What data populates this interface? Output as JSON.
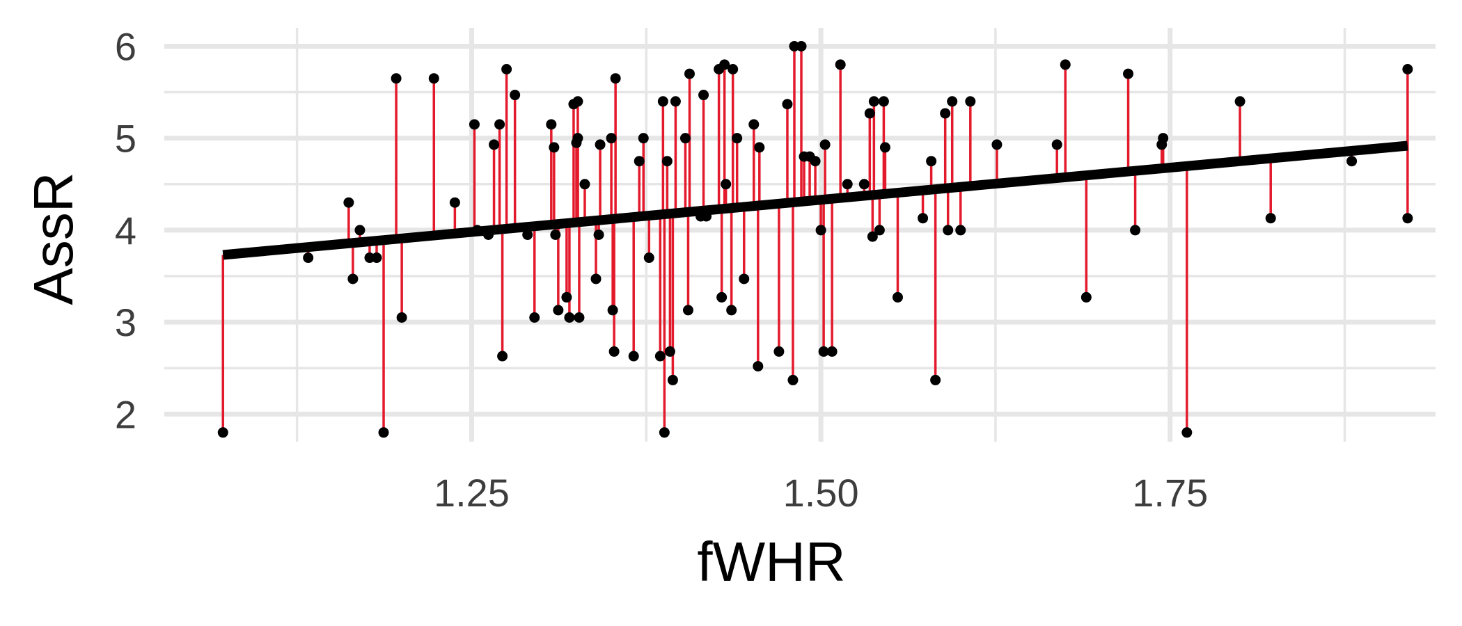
{
  "chart_data": {
    "type": "scatter",
    "title": "",
    "xlabel": "fWHR",
    "ylabel": "AssR",
    "xlim": [
      1.03,
      1.94
    ],
    "ylim": [
      1.7,
      6.2
    ],
    "x_ticks": [
      1.25,
      1.5,
      1.75
    ],
    "x_tick_labels": [
      "1.25",
      "1.50",
      "1.75"
    ],
    "y_ticks": [
      2,
      3,
      4,
      5,
      6
    ],
    "y_tick_labels": [
      "2",
      "3",
      "4",
      "5",
      "6"
    ],
    "grid": true,
    "legend": "none",
    "regression_line": {
      "intercept": 2.23,
      "slope": 1.4
    },
    "colors": {
      "points": "#000000",
      "residuals": "#e31a2c",
      "fit_line": "#000000",
      "grid": "#e6e6e6"
    },
    "points": [
      [
        1.072,
        1.8
      ],
      [
        1.133,
        3.7
      ],
      [
        1.162,
        4.3
      ],
      [
        1.165,
        3.47
      ],
      [
        1.17,
        4.0
      ],
      [
        1.177,
        3.7
      ],
      [
        1.182,
        3.7
      ],
      [
        1.187,
        1.8
      ],
      [
        1.196,
        5.65
      ],
      [
        1.2,
        3.05
      ],
      [
        1.223,
        5.65
      ],
      [
        1.238,
        4.3
      ],
      [
        1.252,
        5.15
      ],
      [
        1.254,
        4.0
      ],
      [
        1.262,
        3.95
      ],
      [
        1.266,
        4.93
      ],
      [
        1.27,
        5.15
      ],
      [
        1.272,
        2.63
      ],
      [
        1.275,
        5.75
      ],
      [
        1.281,
        5.47
      ],
      [
        1.29,
        3.95
      ],
      [
        1.295,
        3.05
      ],
      [
        1.307,
        5.15
      ],
      [
        1.309,
        4.9
      ],
      [
        1.31,
        3.95
      ],
      [
        1.312,
        3.13
      ],
      [
        1.318,
        3.27
      ],
      [
        1.32,
        3.05
      ],
      [
        1.323,
        5.37
      ],
      [
        1.325,
        4.95
      ],
      [
        1.326,
        5.0
      ],
      [
        1.326,
        5.4
      ],
      [
        1.327,
        3.05
      ],
      [
        1.331,
        4.5
      ],
      [
        1.339,
        3.47
      ],
      [
        1.342,
        4.93
      ],
      [
        1.341,
        3.95
      ],
      [
        1.35,
        5.0
      ],
      [
        1.351,
        3.13
      ],
      [
        1.352,
        2.68
      ],
      [
        1.353,
        5.65
      ],
      [
        1.366,
        2.63
      ],
      [
        1.37,
        4.75
      ],
      [
        1.373,
        5.0
      ],
      [
        1.377,
        3.7
      ],
      [
        1.385,
        2.63
      ],
      [
        1.387,
        5.4
      ],
      [
        1.388,
        1.8
      ],
      [
        1.39,
        4.75
      ],
      [
        1.392,
        2.68
      ],
      [
        1.394,
        2.37
      ],
      [
        1.396,
        5.4
      ],
      [
        1.403,
        5.0
      ],
      [
        1.405,
        3.13
      ],
      [
        1.406,
        5.7
      ],
      [
        1.414,
        4.15
      ],
      [
        1.416,
        5.47
      ],
      [
        1.418,
        4.15
      ],
      [
        1.427,
        5.75
      ],
      [
        1.429,
        3.27
      ],
      [
        1.431,
        5.8
      ],
      [
        1.432,
        4.5
      ],
      [
        1.436,
        3.13
      ],
      [
        1.437,
        5.75
      ],
      [
        1.44,
        5.0
      ],
      [
        1.445,
        3.47
      ],
      [
        1.452,
        5.15
      ],
      [
        1.455,
        2.52
      ],
      [
        1.456,
        4.9
      ],
      [
        1.47,
        2.68
      ],
      [
        1.476,
        5.37
      ],
      [
        1.48,
        2.37
      ],
      [
        1.481,
        6.0
      ],
      [
        1.486,
        6.0
      ],
      [
        1.488,
        4.8
      ],
      [
        1.492,
        4.8
      ],
      [
        1.496,
        4.75
      ],
      [
        1.5,
        4.0
      ],
      [
        1.502,
        2.68
      ],
      [
        1.503,
        4.93
      ],
      [
        1.508,
        2.68
      ],
      [
        1.514,
        5.8
      ],
      [
        1.519,
        4.5
      ],
      [
        1.531,
        4.5
      ],
      [
        1.535,
        5.27
      ],
      [
        1.537,
        3.93
      ],
      [
        1.538,
        5.4
      ],
      [
        1.542,
        4.0
      ],
      [
        1.545,
        5.4
      ],
      [
        1.546,
        4.9
      ],
      [
        1.555,
        3.27
      ],
      [
        1.573,
        4.13
      ],
      [
        1.579,
        4.75
      ],
      [
        1.582,
        2.37
      ],
      [
        1.589,
        5.27
      ],
      [
        1.591,
        4.0
      ],
      [
        1.594,
        5.4
      ],
      [
        1.6,
        4.0
      ],
      [
        1.607,
        5.4
      ],
      [
        1.626,
        4.93
      ],
      [
        1.669,
        4.93
      ],
      [
        1.675,
        5.8
      ],
      [
        1.69,
        3.27
      ],
      [
        1.72,
        5.7
      ],
      [
        1.725,
        4.0
      ],
      [
        1.744,
        4.93
      ],
      [
        1.745,
        5.0
      ],
      [
        1.762,
        1.8
      ],
      [
        1.8,
        5.4
      ],
      [
        1.822,
        4.13
      ],
      [
        1.88,
        4.75
      ],
      [
        1.92,
        4.13
      ],
      [
        1.92,
        5.75
      ]
    ]
  }
}
